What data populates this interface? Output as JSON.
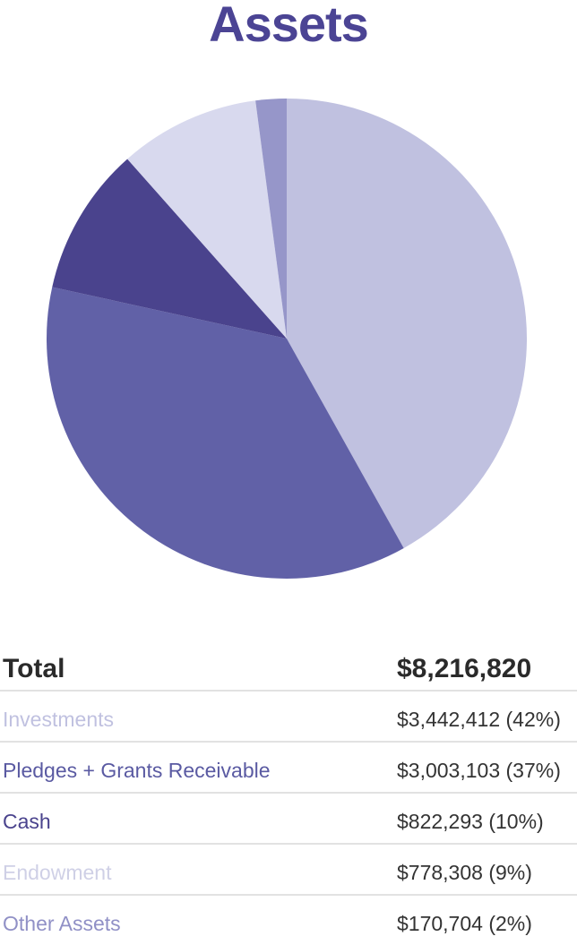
{
  "chart_data": {
    "type": "pie",
    "title": "Assets",
    "total_label": "Total",
    "total_value": "$8,216,820",
    "slices": [
      {
        "name": "Investments",
        "value": 3442412,
        "display": "$3,442,412 (42%)",
        "color": "#c0c1e0",
        "label_color": "#c0c1e0"
      },
      {
        "name": "Pledges + Grants Receivable",
        "value": 3003103,
        "display": "$3,003,103 (37%)",
        "color": "#6161a7",
        "label_color": "#5a5aa2"
      },
      {
        "name": "Cash",
        "value": 822293,
        "display": "$822,293 (10%)",
        "color": "#4a438d",
        "label_color": "#4a438d"
      },
      {
        "name": "Endowment",
        "value": 778308,
        "display": "$778,308 (9%)",
        "color": "#d8d9ee",
        "label_color": "#cfd0e6"
      },
      {
        "name": "Other Assets",
        "value": 170704,
        "display": "$170,704 (2%)",
        "color": "#9696c9",
        "label_color": "#9090c6"
      }
    ]
  }
}
